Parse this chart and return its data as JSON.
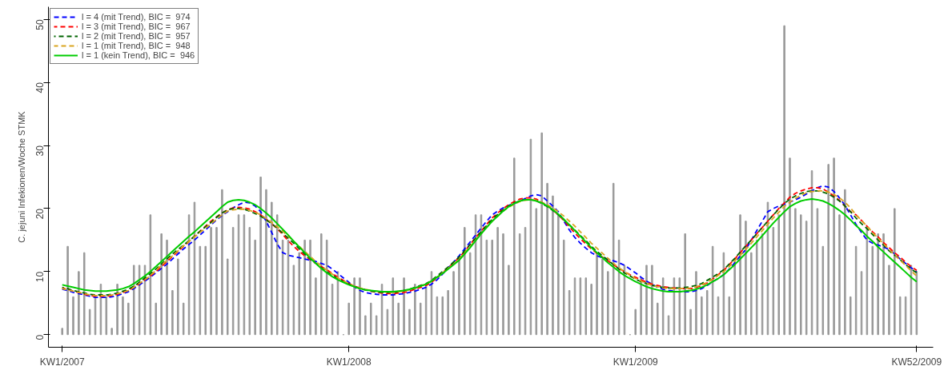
{
  "chart_data": {
    "type": "bar",
    "ylabel": "C. jejuni Infekionen/Woche STMK",
    "categories": [
      "KW1/2007",
      null,
      null,
      null,
      null,
      null,
      null,
      null,
      null,
      null,
      null,
      null,
      null,
      null,
      null,
      null,
      null,
      null,
      null,
      null,
      null,
      null,
      null,
      null,
      null,
      null,
      null,
      null,
      null,
      null,
      null,
      null,
      null,
      null,
      null,
      null,
      null,
      null,
      null,
      null,
      null,
      null,
      null,
      null,
      null,
      null,
      null,
      null,
      null,
      null,
      null,
      null,
      "KW1/2008",
      null,
      null,
      null,
      null,
      null,
      null,
      null,
      null,
      null,
      null,
      null,
      null,
      null,
      null,
      null,
      null,
      null,
      null,
      null,
      null,
      null,
      null,
      null,
      null,
      null,
      null,
      null,
      null,
      null,
      null,
      null,
      null,
      null,
      null,
      null,
      null,
      null,
      null,
      null,
      null,
      null,
      null,
      null,
      null,
      null,
      null,
      null,
      null,
      null,
      null,
      null,
      "KW1/2009",
      null,
      null,
      null,
      null,
      null,
      null,
      null,
      null,
      null,
      null,
      null,
      null,
      null,
      null,
      null,
      null,
      null,
      null,
      null,
      null,
      null,
      null,
      null,
      null,
      null,
      null,
      null,
      null,
      null,
      null,
      null,
      null,
      null,
      null,
      null,
      null,
      null,
      null,
      null,
      null,
      null,
      null,
      null,
      null,
      null,
      null,
      null,
      null,
      null,
      null,
      "KW52/2009"
    ],
    "ylim": [
      -2,
      52
    ],
    "yticks": [
      0,
      10,
      20,
      30,
      40,
      50
    ],
    "legend": "top left",
    "series": [
      {
        "color": "#999999",
        "values": [
          1,
          14,
          6,
          10,
          13,
          4,
          6,
          8,
          6,
          1,
          8,
          6,
          5,
          11,
          11,
          11,
          19,
          5,
          16,
          15,
          7,
          12,
          5,
          19,
          21,
          14,
          14,
          17,
          17,
          23,
          12,
          17,
          19,
          19,
          17,
          15,
          25,
          23,
          21,
          19,
          15,
          15,
          11,
          13,
          15,
          15,
          9,
          16,
          15,
          8,
          10,
          0,
          5,
          9,
          9,
          3,
          5,
          3,
          8,
          4,
          9,
          5,
          9,
          4,
          8,
          5,
          8,
          10,
          6,
          6,
          7,
          10,
          12,
          17,
          13,
          19,
          19,
          15,
          15,
          17,
          16,
          11,
          28,
          16,
          17,
          31,
          20,
          32,
          24,
          22,
          19,
          15,
          7,
          9,
          9,
          9,
          8,
          13,
          12,
          10,
          24,
          15,
          11,
          0,
          4,
          9,
          11,
          11,
          5,
          9,
          3,
          9,
          9,
          16,
          4,
          10,
          6,
          7,
          14,
          6,
          13,
          6,
          12,
          19,
          18,
          13,
          15,
          16,
          21,
          17,
          19,
          49,
          28,
          20,
          19,
          18,
          26,
          20,
          14,
          27,
          28,
          19,
          23,
          6,
          14,
          10,
          17,
          14,
          16,
          16,
          11,
          20,
          6,
          6,
          11,
          10
        ]
      },
      {
        "type": "line",
        "name": "l = 4 (mit Trend), BIC =  974",
        "color": "#0000ff",
        "line_style": "dashed",
        "values": [
          7.2,
          7.0,
          6.7,
          6.5,
          6.3,
          6.1,
          5.9,
          5.9,
          5.9,
          6.0,
          6.2,
          6.5,
          6.8,
          7.3,
          7.9,
          8.5,
          9.1,
          9.8,
          10.5,
          11.2,
          12.0,
          12.8,
          13.6,
          14.3,
          15.0,
          15.8,
          16.6,
          17.4,
          18.2,
          18.9,
          19.5,
          20.1,
          20.6,
          21.0,
          20.9,
          20.4,
          19.5,
          18.0,
          16.2,
          14.4,
          13.0,
          12.6,
          12.4,
          12.2,
          12.0,
          11.8,
          11.6,
          11.3,
          11.0,
          10.4,
          9.7,
          9.0,
          8.3,
          7.6,
          7.0,
          6.7,
          6.5,
          6.4,
          6.3,
          6.3,
          6.3,
          6.4,
          6.5,
          6.7,
          6.9,
          7.2,
          7.5,
          8.0,
          8.7,
          9.6,
          10.6,
          11.5,
          12.5,
          13.6,
          14.7,
          15.8,
          16.9,
          18.0,
          19.0,
          19.6,
          20.1,
          20.5,
          20.8,
          21.2,
          21.6,
          22.0,
          22.2,
          22.0,
          21.2,
          20.4,
          19.5,
          18.0,
          16.6,
          15.4,
          14.5,
          13.7,
          13.0,
          12.5,
          12.2,
          12.0,
          11.7,
          11.4,
          11.0,
          10.4,
          9.8,
          9.1,
          8.5,
          8.0,
          7.5,
          7.2,
          7.0,
          6.9,
          6.8,
          6.8,
          6.8,
          7.0,
          7.3,
          7.8,
          8.4,
          8.9,
          9.5,
          10.4,
          11.4,
          12.5,
          13.5,
          15.0,
          16.5,
          18.0,
          19.5,
          20.0,
          20.4,
          20.7,
          21.0,
          21.4,
          21.8,
          22.3,
          22.8,
          23.3,
          23.6,
          23.4,
          22.7,
          21.7,
          20.5,
          19.0,
          17.5,
          16.2,
          15.0,
          14.5,
          14.2,
          13.9,
          13.5,
          12.8,
          12.0,
          11.3,
          10.6,
          10.0
        ]
      },
      {
        "type": "line",
        "name": "l = 3 (mit Trend), BIC =  967",
        "color": "#ff0000",
        "line_style": "dashed",
        "values": [
          7.4,
          7.2,
          6.9,
          6.7,
          6.4,
          6.2,
          6.1,
          6.1,
          6.1,
          6.2,
          6.4,
          6.7,
          7.0,
          7.5,
          8.1,
          8.7,
          9.3,
          10.0,
          10.8,
          11.6,
          12.4,
          13.2,
          14.0,
          14.8,
          15.6,
          16.4,
          17.2,
          18.0,
          18.7,
          19.3,
          19.8,
          20.1,
          20.2,
          20.1,
          19.9,
          19.5,
          19.0,
          18.3,
          17.6,
          16.8,
          15.9,
          14.9,
          14.0,
          13.2,
          12.5,
          11.9,
          11.3,
          10.8,
          10.3,
          9.7,
          9.1,
          8.6,
          8.1,
          7.7,
          7.4,
          7.1,
          6.9,
          6.7,
          6.6,
          6.5,
          6.5,
          6.6,
          6.7,
          6.9,
          7.2,
          7.5,
          7.8,
          8.3,
          9.0,
          9.8,
          10.6,
          11.4,
          12.2,
          13.2,
          14.3,
          15.4,
          16.4,
          17.5,
          18.5,
          19.3,
          20.0,
          20.6,
          21.1,
          21.5,
          21.7,
          21.7,
          21.5,
          21.0,
          20.4,
          19.8,
          19.0,
          18.1,
          17.1,
          16.1,
          15.2,
          14.4,
          13.6,
          12.9,
          12.3,
          11.7,
          11.1,
          10.5,
          10.0,
          9.5,
          9.1,
          8.7,
          8.3,
          8.0,
          7.8,
          7.6,
          7.5,
          7.4,
          7.3,
          7.3,
          7.3,
          7.5,
          7.8,
          8.2,
          8.8,
          9.5,
          10.2,
          11.1,
          12.0,
          13.0,
          14.0,
          15.0,
          16.0,
          17.0,
          18.0,
          19.0,
          20.0,
          20.9,
          21.8,
          22.4,
          22.8,
          23.1,
          23.3,
          23.3,
          23.1,
          22.6,
          22.0,
          21.3,
          20.4,
          19.5,
          19.0,
          18.1,
          17.2,
          16.3,
          15.5,
          14.6,
          13.8,
          13.0,
          12.3,
          11.5,
          10.8,
          10.2
        ]
      },
      {
        "type": "line",
        "name": "l = 2 (mit Trend), BIC =  957",
        "color": "#006400",
        "line_style": "dashed",
        "values": [
          7.5,
          7.3,
          7.0,
          6.8,
          6.6,
          6.4,
          6.3,
          6.3,
          6.3,
          6.4,
          6.6,
          6.9,
          7.2,
          7.7,
          8.3,
          9.0,
          9.7,
          10.4,
          11.2,
          12.0,
          12.8,
          13.5,
          14.2,
          14.9,
          15.6,
          16.4,
          17.1,
          17.8,
          18.6,
          19.3,
          19.8,
          20.0,
          20.0,
          19.9,
          19.6,
          19.2,
          18.8,
          18.2,
          17.6,
          16.9,
          16.1,
          15.3,
          14.5,
          13.6,
          12.8,
          12.0,
          11.3,
          10.6,
          10.0,
          9.4,
          8.9,
          8.4,
          8.0,
          7.6,
          7.3,
          7.1,
          6.9,
          6.8,
          6.7,
          6.7,
          6.7,
          6.8,
          7.0,
          7.2,
          7.5,
          7.8,
          8.1,
          8.6,
          9.3,
          10.0,
          10.7,
          11.5,
          12.3,
          13.3,
          14.3,
          15.3,
          16.3,
          17.3,
          18.3,
          19.1,
          19.8,
          20.4,
          20.9,
          21.2,
          21.4,
          21.4,
          21.2,
          20.8,
          20.3,
          19.7,
          19.0,
          18.2,
          17.4,
          16.6,
          15.7,
          14.9,
          14.0,
          13.2,
          12.5,
          11.8,
          11.1,
          10.4,
          9.8,
          9.3,
          8.8,
          8.4,
          8.1,
          7.8,
          7.6,
          7.5,
          7.4,
          7.4,
          7.4,
          7.5,
          7.6,
          7.8,
          8.1,
          8.6,
          9.1,
          9.7,
          10.3,
          11.2,
          12.1,
          13.1,
          14.1,
          15.0,
          16.0,
          17.0,
          18.0,
          19.0,
          19.9,
          20.8,
          21.5,
          22.0,
          22.4,
          22.7,
          22.8,
          22.8,
          22.6,
          22.3,
          21.8,
          21.2,
          20.4,
          19.5,
          18.5,
          17.6,
          16.8,
          15.9,
          15.0,
          14.2,
          13.3,
          12.6,
          11.9,
          11.1,
          10.4,
          9.8
        ]
      },
      {
        "type": "line",
        "name": "l = 1 (mit Trend), BIC =  948",
        "color": "#daa520",
        "line_style": "dashed",
        "values": [
          7.3,
          7.1,
          6.9,
          6.7,
          6.5,
          6.3,
          6.2,
          6.2,
          6.2,
          6.3,
          6.5,
          6.7,
          7.0,
          7.5,
          8.1,
          8.7,
          9.4,
          10.2,
          11.0,
          11.8,
          12.5,
          13.3,
          14.1,
          14.8,
          15.5,
          16.2,
          16.9,
          17.6,
          18.3,
          19.0,
          19.6,
          19.8,
          19.9,
          19.9,
          19.7,
          19.4,
          19.0,
          18.4,
          17.8,
          17.1,
          16.4,
          15.6,
          14.8,
          14.0,
          13.2,
          12.4,
          11.6,
          10.9,
          10.2,
          9.6,
          9.0,
          8.5,
          8.1,
          7.7,
          7.4,
          7.2,
          7.0,
          6.9,
          6.8,
          6.7,
          6.7,
          6.8,
          6.9,
          7.1,
          7.4,
          7.7,
          8.0,
          8.5,
          9.1,
          9.8,
          10.5,
          11.2,
          12.0,
          13.0,
          14.0,
          15.0,
          16.0,
          17.0,
          18.0,
          18.8,
          19.6,
          20.2,
          20.7,
          21.1,
          21.3,
          21.4,
          21.3,
          21.0,
          20.6,
          20.1,
          19.5,
          18.8,
          18.0,
          17.2,
          16.3,
          15.4,
          14.5,
          13.7,
          12.9,
          12.1,
          11.3,
          10.6,
          10.0,
          9.4,
          8.9,
          8.5,
          8.1,
          7.8,
          7.6,
          7.4,
          7.3,
          7.3,
          7.3,
          7.3,
          7.4,
          7.6,
          7.9,
          8.3,
          8.8,
          9.4,
          10.0,
          10.8,
          11.7,
          12.6,
          13.5,
          14.5,
          15.5,
          16.5,
          17.5,
          18.5,
          19.4,
          20.3,
          21.0,
          21.6,
          22.1,
          22.5,
          22.7,
          22.8,
          22.8,
          22.6,
          22.2,
          21.7,
          21.0,
          20.1,
          19.0,
          18.1,
          17.2,
          16.2,
          15.3,
          14.4,
          13.5,
          12.7,
          11.8,
          11.0,
          10.1,
          9.3
        ]
      },
      {
        "type": "line",
        "name": "l = 1 (kein Trend), BIC =  946",
        "color": "#00cc00",
        "line_style": "solid",
        "values": [
          7.9,
          7.7,
          7.5,
          7.3,
          7.1,
          7.0,
          6.9,
          6.9,
          6.9,
          7.0,
          7.1,
          7.3,
          7.6,
          8.1,
          8.7,
          9.3,
          10.0,
          10.8,
          11.6,
          12.4,
          13.2,
          14.0,
          14.8,
          15.6,
          16.3,
          17.1,
          17.9,
          18.7,
          19.5,
          20.3,
          21.0,
          21.3,
          21.4,
          21.3,
          21.0,
          20.6,
          20.0,
          19.3,
          18.5,
          17.6,
          16.7,
          15.8,
          14.8,
          13.9,
          13.0,
          12.1,
          11.3,
          10.5,
          9.8,
          9.2,
          8.7,
          8.3,
          7.9,
          7.6,
          7.3,
          7.1,
          7.0,
          6.9,
          6.8,
          6.8,
          6.8,
          6.9,
          7.0,
          7.2,
          7.4,
          7.7,
          8.0,
          8.5,
          9.1,
          9.7,
          10.4,
          11.1,
          11.8,
          12.8,
          13.8,
          14.9,
          16.0,
          17.0,
          18.0,
          18.8,
          19.6,
          20.3,
          20.8,
          21.2,
          21.4,
          21.4,
          21.2,
          20.9,
          20.4,
          19.8,
          19.1,
          18.3,
          17.4,
          16.5,
          15.6,
          14.7,
          13.8,
          13.0,
          12.2,
          11.4,
          10.7,
          10.0,
          9.4,
          8.9,
          8.4,
          8.0,
          7.6,
          7.3,
          7.1,
          6.9,
          6.8,
          6.8,
          6.8,
          6.9,
          7.0,
          7.2,
          7.5,
          7.9,
          8.4,
          8.9,
          9.5,
          10.3,
          11.1,
          12.0,
          12.9,
          13.8,
          14.7,
          15.7,
          16.7,
          17.7,
          18.6,
          19.5,
          20.3,
          20.8,
          21.2,
          21.4,
          21.5,
          21.4,
          21.2,
          20.8,
          20.3,
          19.7,
          19.0,
          18.2,
          17.3,
          16.5,
          15.6,
          14.8,
          13.9,
          13.1,
          12.3,
          11.5,
          10.7,
          9.9,
          9.1,
          8.4
        ]
      }
    ]
  }
}
